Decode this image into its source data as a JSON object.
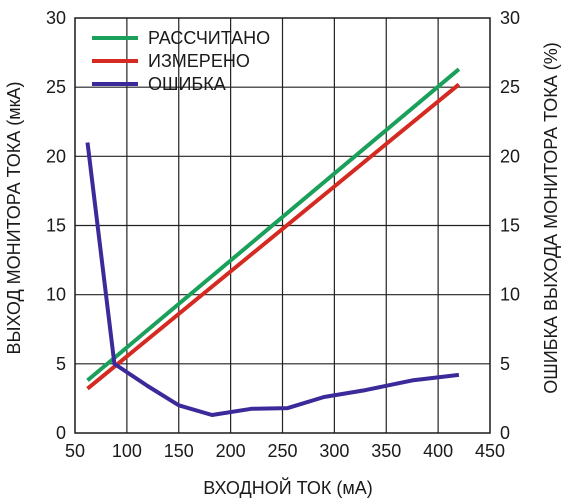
{
  "chart_data": {
    "type": "line",
    "title": "",
    "xlabel": "ВХОДНОЙ ТОК (мА)",
    "ylabel": "ВЫХОД МОНИТОРА ТОКА (мкА)",
    "y2label": "ОШИБКА ВЫХОДА МОНИТОРА ТОКА (%)",
    "xlim": [
      50,
      450
    ],
    "ylim": [
      0,
      30
    ],
    "y2lim": [
      0,
      30
    ],
    "x_ticks": [
      50,
      100,
      150,
      200,
      250,
      300,
      350,
      400,
      450
    ],
    "y_ticks": [
      0,
      5,
      10,
      15,
      20,
      25,
      30
    ],
    "y2_ticks": [
      0,
      5,
      10,
      15,
      20,
      25,
      30
    ],
    "grid": true,
    "legend_position": "top-left",
    "series": [
      {
        "name": "РАССЧИТАНО",
        "color": "#1aa05a",
        "axis": "left",
        "x": [
          62,
          420
        ],
        "y": [
          3.8,
          26.3
        ]
      },
      {
        "name": "ИЗМЕРЕНО",
        "color": "#d42a22",
        "axis": "left",
        "x": [
          62,
          420
        ],
        "y": [
          3.2,
          25.2
        ]
      },
      {
        "name": "ОШИБКА",
        "color": "#3a2a9a",
        "axis": "right",
        "x": [
          62,
          88,
          120,
          150,
          182,
          220,
          255,
          290,
          330,
          375,
          420
        ],
        "y": [
          21.0,
          5.0,
          3.4,
          2.0,
          1.3,
          1.75,
          1.8,
          2.6,
          3.1,
          3.8,
          4.2
        ]
      }
    ]
  }
}
